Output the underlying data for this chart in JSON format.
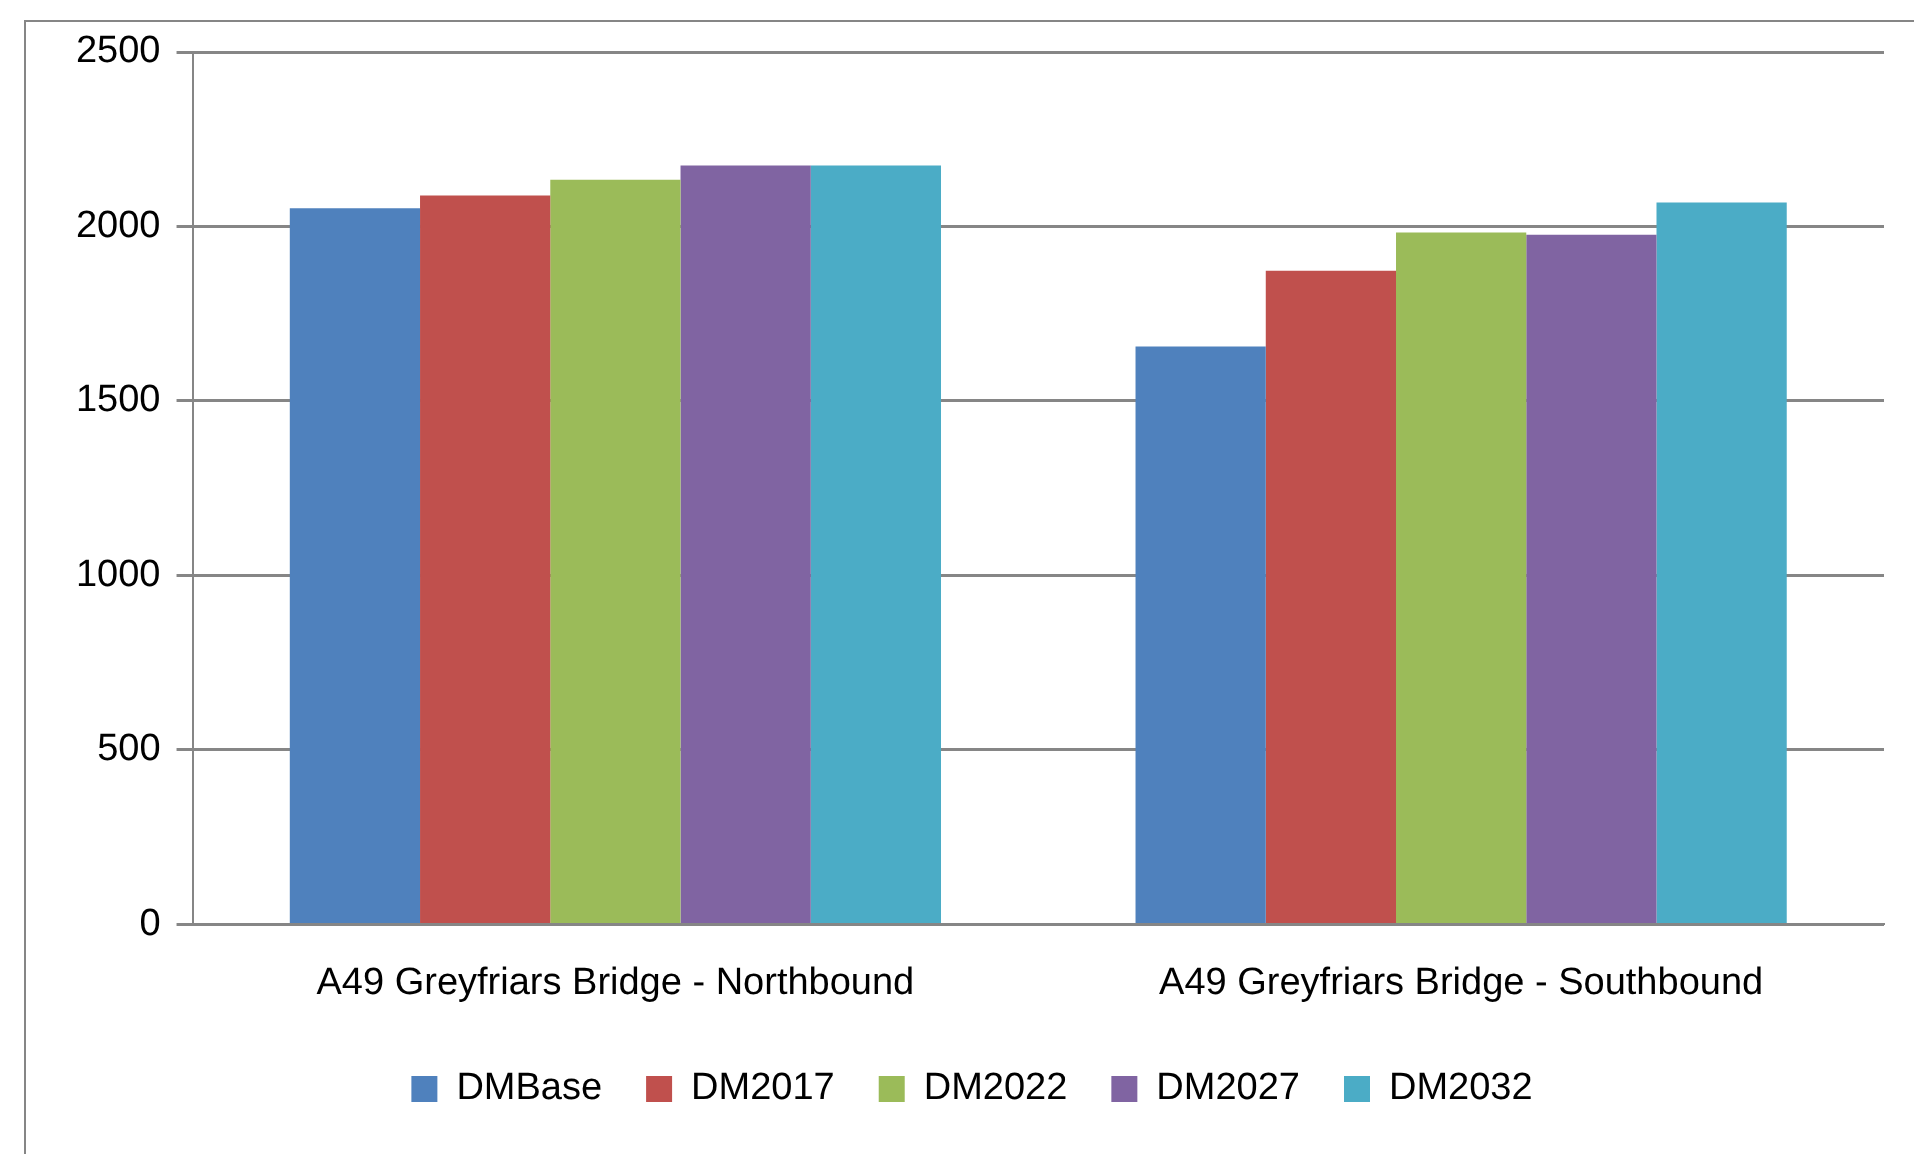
{
  "chart_data": {
    "type": "bar",
    "categories": [
      "A49 Greyfriars Bridge - Northbound",
      "A49 Greyfriars Bridge - Southbound"
    ],
    "series": [
      {
        "name": "DMBase",
        "color": "#4f81bd",
        "values": [
          2052,
          1656
        ]
      },
      {
        "name": "DM2017",
        "color": "#c0504d",
        "values": [
          2089,
          1873
        ]
      },
      {
        "name": "DM2022",
        "color": "#9bbb59",
        "values": [
          2134,
          1983
        ]
      },
      {
        "name": "DM2027",
        "color": "#8064a2",
        "values": [
          2175,
          1976
        ]
      },
      {
        "name": "DM2032",
        "color": "#4bacc6",
        "values": [
          2175,
          2069
        ]
      }
    ],
    "ylim": [
      0,
      2500
    ],
    "yticks": [
      0,
      500,
      1000,
      1500,
      2000,
      2500
    ],
    "grid": "y",
    "legend": "bottom"
  }
}
